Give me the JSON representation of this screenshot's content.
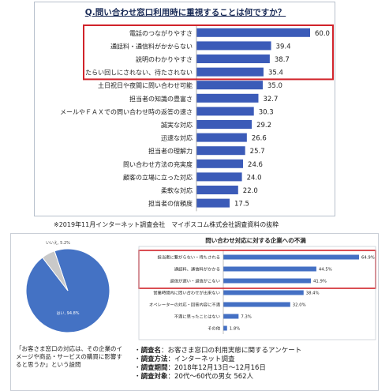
{
  "top_chart": {
    "title": "Q.問い合わせ窓口利用時に重視することは何ですか？",
    "caption": "※2019年11月インターネット調査会社　マイボスコム株式会社調査資料の抜粋"
  },
  "bottom_chart": {
    "title": "問い合わせ対応に対する企業への不満"
  },
  "pie": {
    "caption": "「お客さま窓口の対応は、その企業のイメージや商品・サービスの購買に影響すると思うか」という設問"
  },
  "survey": {
    "rows": [
      {
        "label": "調査名",
        "value": "：お客さま窓口の利用実態に関するアンケート"
      },
      {
        "label": "調査方法",
        "value": "：インターネット調査"
      },
      {
        "label": "調査期間",
        "value": "：2018年12月13日〜12月16日"
      },
      {
        "label": "調査対象",
        "value": "：20代〜60代の男女 562人"
      }
    ]
  },
  "colors": {
    "bar_top": "#3b5bb8",
    "bar_bottom": "#4470c4",
    "pie_yes": "#4472c4",
    "pie_no": "#c9c9c9",
    "highlight": "#d1232a"
  },
  "chart_data": [
    {
      "type": "bar",
      "orientation": "horizontal",
      "title": "Q.問い合わせ窓口利用時に重視することは何ですか？",
      "categories": [
        "電話のつながりやすさ",
        "通話料・通信料がかからない",
        "説明のわかりやすさ",
        "たらい回しにされない、待たされない",
        "土日祝日や夜間に問い合わせ可能",
        "担当者の知識の豊富さ",
        "メールやＦＡＸでの問い合わせ時の返答の速さ",
        "誠実な対応",
        "迅速な対応",
        "担当者の理解力",
        "問い合わせ方法の充実度",
        "顧客の立場に立った対応",
        "柔軟な対応",
        "担当者の信頼度"
      ],
      "values": [
        60.0,
        39.4,
        38.7,
        35.4,
        35.0,
        32.7,
        30.3,
        29.2,
        26.6,
        25.7,
        24.6,
        24.0,
        22.0,
        17.5
      ],
      "value_labels": [
        "60.0",
        "39.4",
        "38.7",
        "35.4",
        "35.0",
        "32.7",
        "30.3",
        "29.2",
        "26.6",
        "25.7",
        "24.6",
        "24.0",
        "22.0",
        "17.5"
      ],
      "highlighted": [
        0,
        1,
        2,
        3
      ],
      "xlim": [
        0,
        65
      ]
    },
    {
      "type": "pie",
      "labels": [
        "はい",
        "いいえ"
      ],
      "values": [
        94.8,
        5.2
      ],
      "value_labels": [
        "はい, 94.8%",
        "いいえ, 5.2%"
      ]
    },
    {
      "type": "bar",
      "orientation": "horizontal",
      "title": "問い合わせ対応に対する企業への不満",
      "categories": [
        "担当者に繋がらない・待たされる",
        "通話料、通信料がかかる",
        "返信が遅い・返信がこない",
        "営業時間内に問い合わせが出来ない",
        "オペレーターの対応・回答内容に不満",
        "不満に思ったことはない",
        "その他"
      ],
      "values": [
        64.9,
        44.5,
        41.9,
        38.4,
        32.0,
        7.3,
        1.8
      ],
      "value_labels": [
        "64.9%",
        "44.5%",
        "41.9%",
        "38.4%",
        "32.0%",
        "7.3%",
        "1.8%"
      ],
      "highlighted": [
        0,
        1,
        2
      ],
      "xlim": [
        0,
        70
      ]
    }
  ]
}
